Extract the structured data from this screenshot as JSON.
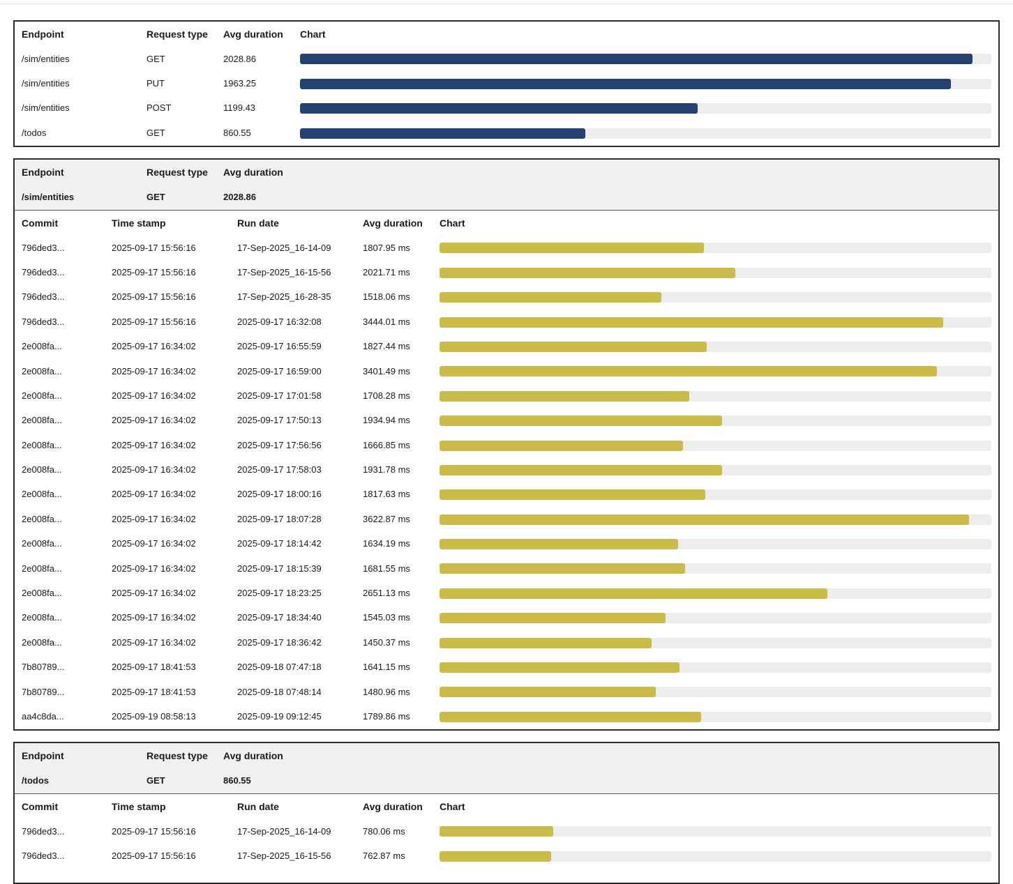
{
  "colors": {
    "summary_bar": "#234272",
    "detail_bar": "#cbbc4a",
    "track": "#ededed"
  },
  "summary": {
    "headers": {
      "endpoint": "Endpoint",
      "request_type": "Request type",
      "avg_duration": "Avg duration",
      "chart": "Chart"
    },
    "max": 2085,
    "rows": [
      {
        "endpoint": "/sim/entities",
        "request_type": "GET",
        "avg_duration": "2028.86",
        "value": 2028.86
      },
      {
        "endpoint": "/sim/entities",
        "request_type": "PUT",
        "avg_duration": "1963.25",
        "value": 1963.25
      },
      {
        "endpoint": "/sim/entities",
        "request_type": "POST",
        "avg_duration": "1199.43",
        "value": 1199.43
      },
      {
        "endpoint": "/todos",
        "request_type": "GET",
        "avg_duration": "860.55",
        "value": 860.55
      }
    ]
  },
  "details": [
    {
      "head_labels": {
        "endpoint": "Endpoint",
        "request_type": "Request type",
        "avg_duration": "Avg duration"
      },
      "endpoint": "/sim/entities",
      "request_type": "GET",
      "avg_duration": "2028.86",
      "columns": {
        "commit": "Commit",
        "timestamp": "Time stamp",
        "run_date": "Run date",
        "avg_duration": "Avg duration",
        "chart": "Chart"
      },
      "max": 3775,
      "rows": [
        {
          "commit": "796ded3...",
          "timestamp": "2025-09-17 15:56:16",
          "run_date": "17-Sep-2025_16-14-09",
          "avg_duration": "1807.95 ms",
          "value": 1807.95
        },
        {
          "commit": "796ded3...",
          "timestamp": "2025-09-17 15:56:16",
          "run_date": "17-Sep-2025_16-15-56",
          "avg_duration": "2021.71 ms",
          "value": 2021.71
        },
        {
          "commit": "796ded3...",
          "timestamp": "2025-09-17 15:56:16",
          "run_date": "17-Sep-2025_16-28-35",
          "avg_duration": "1518.06 ms",
          "value": 1518.06
        },
        {
          "commit": "796ded3...",
          "timestamp": "2025-09-17 15:56:16",
          "run_date": "2025-09-17 16:32:08",
          "avg_duration": "3444.01 ms",
          "value": 3444.01
        },
        {
          "commit": "2e008fa...",
          "timestamp": "2025-09-17 16:34:02",
          "run_date": "2025-09-17 16:55:59",
          "avg_duration": "1827.44 ms",
          "value": 1827.44
        },
        {
          "commit": "2e008fa...",
          "timestamp": "2025-09-17 16:34:02",
          "run_date": "2025-09-17 16:59:00",
          "avg_duration": "3401.49 ms",
          "value": 3401.49
        },
        {
          "commit": "2e008fa...",
          "timestamp": "2025-09-17 16:34:02",
          "run_date": "2025-09-17 17:01:58",
          "avg_duration": "1708.28 ms",
          "value": 1708.28
        },
        {
          "commit": "2e008fa...",
          "timestamp": "2025-09-17 16:34:02",
          "run_date": "2025-09-17 17:50:13",
          "avg_duration": "1934.94 ms",
          "value": 1934.94
        },
        {
          "commit": "2e008fa...",
          "timestamp": "2025-09-17 16:34:02",
          "run_date": "2025-09-17 17:56:56",
          "avg_duration": "1666.85 ms",
          "value": 1666.85
        },
        {
          "commit": "2e008fa...",
          "timestamp": "2025-09-17 16:34:02",
          "run_date": "2025-09-17 17:58:03",
          "avg_duration": "1931.78 ms",
          "value": 1931.78
        },
        {
          "commit": "2e008fa...",
          "timestamp": "2025-09-17 16:34:02",
          "run_date": "2025-09-17 18:00:16",
          "avg_duration": "1817.63 ms",
          "value": 1817.63
        },
        {
          "commit": "2e008fa...",
          "timestamp": "2025-09-17 16:34:02",
          "run_date": "2025-09-17 18:07:28",
          "avg_duration": "3622.87 ms",
          "value": 3622.87
        },
        {
          "commit": "2e008fa...",
          "timestamp": "2025-09-17 16:34:02",
          "run_date": "2025-09-17 18:14:42",
          "avg_duration": "1634.19 ms",
          "value": 1634.19
        },
        {
          "commit": "2e008fa...",
          "timestamp": "2025-09-17 16:34:02",
          "run_date": "2025-09-17 18:15:39",
          "avg_duration": "1681.55 ms",
          "value": 1681.55
        },
        {
          "commit": "2e008fa...",
          "timestamp": "2025-09-17 16:34:02",
          "run_date": "2025-09-17 18:23:25",
          "avg_duration": "2651.13 ms",
          "value": 2651.13
        },
        {
          "commit": "2e008fa...",
          "timestamp": "2025-09-17 16:34:02",
          "run_date": "2025-09-17 18:34:40",
          "avg_duration": "1545.03 ms",
          "value": 1545.03
        },
        {
          "commit": "2e008fa...",
          "timestamp": "2025-09-17 16:34:02",
          "run_date": "2025-09-17 18:36:42",
          "avg_duration": "1450.37 ms",
          "value": 1450.37
        },
        {
          "commit": "7b80789...",
          "timestamp": "2025-09-17 18:41:53",
          "run_date": "2025-09-18 07:47:18",
          "avg_duration": "1641.15 ms",
          "value": 1641.15
        },
        {
          "commit": "7b80789...",
          "timestamp": "2025-09-17 18:41:53",
          "run_date": "2025-09-18 07:48:14",
          "avg_duration": "1480.96 ms",
          "value": 1480.96
        },
        {
          "commit": "aa4c8da...",
          "timestamp": "2025-09-19 08:58:13",
          "run_date": "2025-09-19 09:12:45",
          "avg_duration": "1789.86 ms",
          "value": 1789.86
        }
      ]
    },
    {
      "head_labels": {
        "endpoint": "Endpoint",
        "request_type": "Request type",
        "avg_duration": "Avg duration"
      },
      "endpoint": "/todos",
      "request_type": "GET",
      "avg_duration": "860.55",
      "columns": {
        "commit": "Commit",
        "timestamp": "Time stamp",
        "run_date": "Run date",
        "avg_duration": "Avg duration",
        "chart": "Chart"
      },
      "max": 3775,
      "rows": [
        {
          "commit": "796ded3...",
          "timestamp": "2025-09-17 15:56:16",
          "run_date": "17-Sep-2025_16-14-09",
          "avg_duration": "780.06 ms",
          "value": 780.06
        },
        {
          "commit": "796ded3...",
          "timestamp": "2025-09-17 15:56:16",
          "run_date": "17-Sep-2025_16-15-56",
          "avg_duration": "762.87 ms",
          "value": 762.87
        }
      ]
    }
  ]
}
